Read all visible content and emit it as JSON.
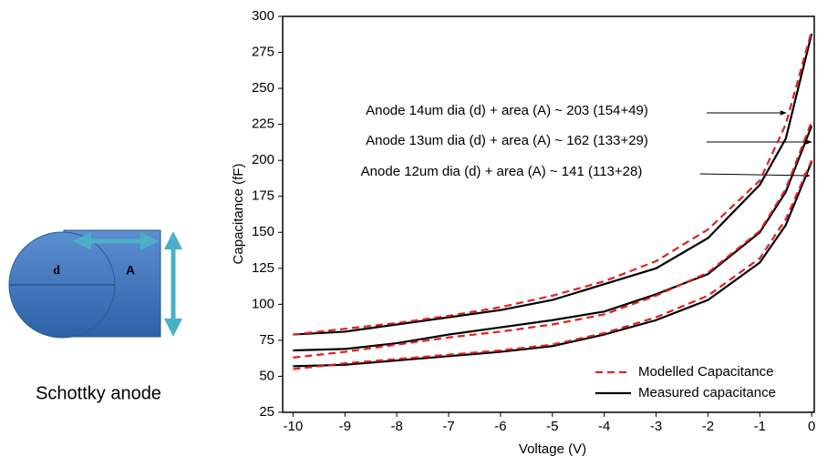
{
  "diagram": {
    "d_label": "d",
    "a_label": "A",
    "caption": "Schottky anode"
  },
  "chart_data": {
    "type": "line",
    "x_label": "Voltage (V)",
    "y_label": "Capacitance (fF)",
    "x": [
      -10,
      -9,
      -8,
      -7,
      -6,
      -5,
      -4,
      -3,
      -2,
      -1,
      -0.5,
      0
    ],
    "series": [
      {
        "color": "#000000",
        "dashed": false,
        "values": [
          79,
          81,
          86,
          91,
          96,
          103,
          114,
          125,
          146,
          183,
          215,
          288
        ]
      },
      {
        "color": "#e02020",
        "dashed": true,
        "values": [
          79,
          83,
          87,
          92,
          98,
          106,
          116,
          130,
          152,
          186,
          225,
          290
        ]
      },
      {
        "color": "#000000",
        "dashed": false,
        "values": [
          68,
          69,
          73,
          79,
          84,
          89,
          95,
          107,
          121,
          150,
          178,
          224
        ]
      },
      {
        "color": "#e02020",
        "dashed": true,
        "values": [
          63,
          67,
          72,
          77,
          81,
          86,
          93,
          106,
          122,
          151,
          180,
          227
        ]
      },
      {
        "color": "#000000",
        "dashed": false,
        "values": [
          57,
          58,
          61,
          64,
          67,
          71,
          79,
          89,
          103,
          129,
          155,
          199
        ]
      },
      {
        "color": "#e02020",
        "dashed": true,
        "values": [
          55,
          59,
          62,
          65,
          68,
          72,
          80,
          91,
          106,
          132,
          159,
          200
        ]
      }
    ],
    "legend": [
      {
        "name": "Modelled Capacitance",
        "color": "#e02020",
        "dashed": true
      },
      {
        "name": "Measured capacitance",
        "color": "#000000",
        "dashed": false
      }
    ],
    "legend_position": "lower right",
    "annotations": [
      "Anode 14um dia (d) + area (A) ~ 203 (154+49)",
      "Anode 13um dia (d) + area (A) ~ 162  (133+29)",
      "Anode 12um dia (d) + area (A) ~ 141  (113+28)"
    ],
    "xlim": [
      -10.2,
      0.05
    ],
    "ylim": [
      25,
      300
    ],
    "xticks": [
      -10,
      -9,
      -8,
      -7,
      -6,
      -5,
      -4,
      -3,
      -2,
      -1,
      0
    ],
    "yticks": [
      25,
      50,
      75,
      100,
      125,
      150,
      175,
      200,
      225,
      250,
      275,
      300
    ]
  }
}
